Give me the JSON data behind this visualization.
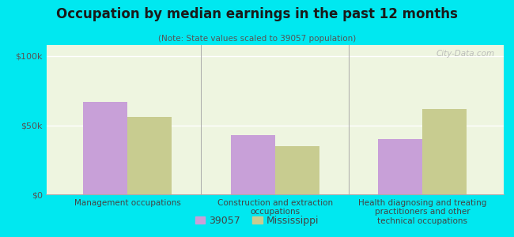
{
  "title": "Occupation by median earnings in the past 12 months",
  "subtitle": "(Note: State values scaled to 39057 population)",
  "categories": [
    "Management occupations",
    "Construction and extraction\noccupations",
    "Health diagnosing and treating\npractitioners and other\ntechnical occupations"
  ],
  "values_39057": [
    67000,
    43000,
    40000
  ],
  "values_mississippi": [
    56000,
    35000,
    62000
  ],
  "color_39057": "#c8a0d8",
  "color_mississippi": "#c8cc90",
  "background_fig": "#00e8f0",
  "yticks": [
    0,
    50000,
    100000
  ],
  "ytick_labels": [
    "$0",
    "$50k",
    "$100k"
  ],
  "ylim": [
    0,
    108000
  ],
  "bar_width": 0.3,
  "legend_label_39057": "39057",
  "legend_label_mississippi": "Mississippi",
  "watermark": "City-Data.com",
  "sep_color": "#aaaaaa",
  "grid_color": "#d0d8c0",
  "spine_color": "#aaaaaa"
}
